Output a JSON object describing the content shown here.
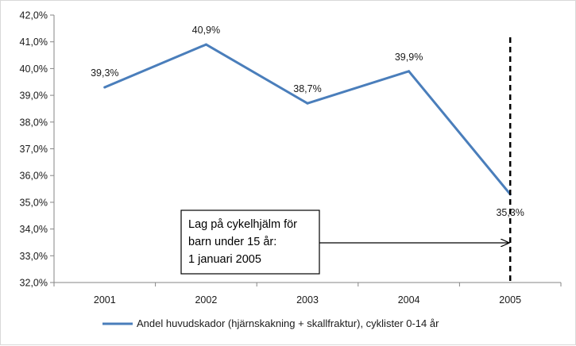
{
  "chart_data": {
    "type": "line",
    "x": [
      "2001",
      "2002",
      "2003",
      "2004",
      "2005"
    ],
    "series": [
      {
        "name": "Andel huvudskador (hjärnskakning + skallfraktur), cyklister 0-14 år",
        "values": [
          39.3,
          40.9,
          38.7,
          39.9,
          35.3
        ],
        "labels": [
          "39,3%",
          "40,9%",
          "38,7%",
          "39,9%",
          "35,3%"
        ],
        "color": "#4a7ebb"
      }
    ],
    "y_ticks": [
      "32,0%",
      "33,0%",
      "34,0%",
      "35,0%",
      "36,0%",
      "37,0%",
      "38,0%",
      "39,0%",
      "40,0%",
      "41,0%",
      "42,0%"
    ],
    "ylim": [
      32,
      42
    ],
    "grid": false,
    "legend_position": "bottom",
    "marker_line": {
      "x_position": 4.5,
      "style": "dashed",
      "color": "#000000"
    },
    "annotation": {
      "lines": [
        "Lag på cykelhjälm för",
        "barn under 15 år:",
        "1 januari 2005"
      ],
      "arrow_to": "marker_line"
    }
  }
}
